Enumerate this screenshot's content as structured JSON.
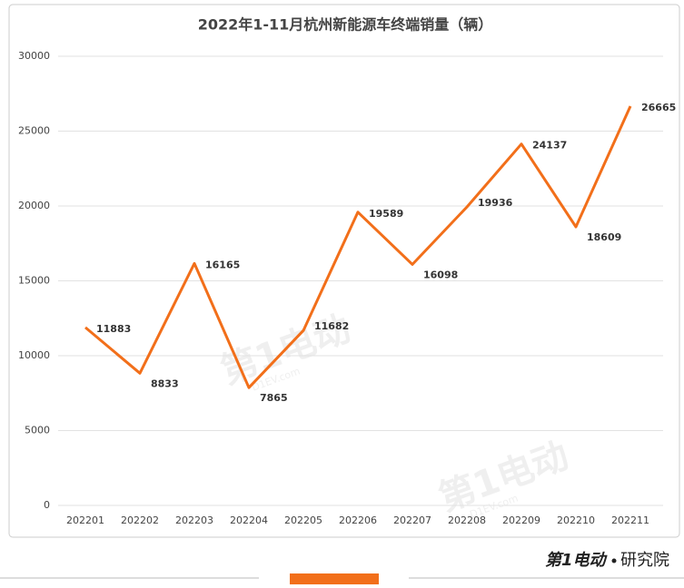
{
  "chart_data": {
    "type": "line",
    "title": "2022年1-11月杭州新能源车终端销量（辆）",
    "categories": [
      "202201",
      "202202",
      "202203",
      "202204",
      "202205",
      "202206",
      "202207",
      "202208",
      "202209",
      "202210",
      "202211"
    ],
    "values": [
      11883,
      8833,
      16165,
      7865,
      11682,
      19589,
      16098,
      19936,
      24137,
      18609,
      26665
    ],
    "color": "#f26f1a",
    "ylim": [
      0,
      30000
    ],
    "yticks": [
      0,
      5000,
      10000,
      15000,
      20000,
      25000,
      30000
    ],
    "grid": true
  },
  "watermark": {
    "brand": "第1电动",
    "site": "D1EV.com"
  },
  "footer": {
    "brand": "第1电动",
    "institute": "研究院"
  }
}
